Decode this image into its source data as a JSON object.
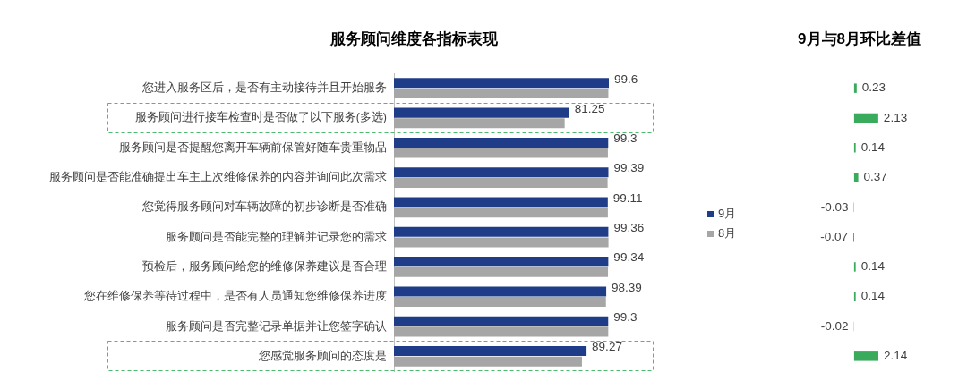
{
  "chart_data": [
    {
      "type": "bar",
      "orientation": "horizontal",
      "title": "服务顾问维度各指标表现",
      "categories": [
        "您进入服务区后，是否有主动接待并且开始服务",
        "服务顾问进行接车检查时是否做了以下服务(多选)",
        "服务顾问是否提醒您离开车辆前保管好随车贵重物品",
        "服务顾问是否能准确提出车主上次维修保养的内容并询问此次需求",
        "您觉得服务顾问对车辆故障的初步诊断是否准确",
        "服务顾问是否能完整的理解并记录您的需求",
        "预检后，服务顾问给您的维修保养建议是否合理",
        "您在维修保养等待过程中，是否有人员通知您维修保养进度",
        "服务顾问是否完整记录单据并让您签字确认",
        "您感觉服务顾问的态度是"
      ],
      "series": [
        {
          "name": "9月",
          "color": "#1f3c88",
          "values": [
            99.6,
            81.25,
            99.3,
            99.39,
            99.11,
            99.36,
            99.34,
            98.39,
            99.3,
            89.27
          ],
          "value_labels": [
            "99.6",
            "81.25",
            "99.3",
            "99.39",
            "99.11",
            "99.36",
            "99.34",
            "98.39",
            "99.3",
            "89.27"
          ]
        },
        {
          "name": "8月",
          "color": "#a6a6a6",
          "values": [
            99.37,
            79.12,
            99.16,
            99.02,
            99.14,
            99.43,
            99.2,
            98.25,
            99.32,
            87.13
          ]
        }
      ],
      "tick_labels": "y",
      "legend": "right"
    },
    {
      "type": "bar",
      "orientation": "horizontal",
      "title": "9月与8月环比差值",
      "categories": [
        null,
        null,
        null,
        null,
        null,
        null,
        null,
        null,
        null,
        null
      ],
      "values": [
        0.23,
        2.13,
        0.14,
        0.37,
        -0.03,
        -0.07,
        0.14,
        0.14,
        -0.02,
        2.14
      ],
      "colors": [
        "#3aaa5c",
        "#3aaa5c",
        "#3aaa5c",
        "#3aaa5c",
        "#e8504f",
        "#e8504f",
        "#3aaa5c",
        "#3aaa5c",
        "#e8504f",
        "#3aaa5c"
      ],
      "data_labels": true,
      "tick_labels": false
    }
  ]
}
